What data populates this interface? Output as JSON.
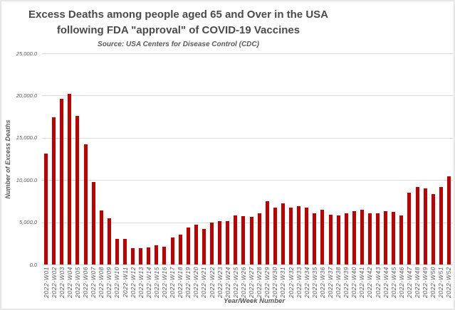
{
  "chart": {
    "title_line1": "Excess Deaths among people aged 65 and Over in the USA",
    "title_line2": "following FDA \"approval\" of COVID-19 Vaccines",
    "subtitle": "Source: USA Centers for Disease Control (CDC)",
    "colors": {
      "bar": "#c00000",
      "gridline": "#d9d9d9",
      "title_text": "#4a4a4a",
      "axis_text": "#595959",
      "background": "#ffffff",
      "frame_border": "#e7e7e7"
    }
  },
  "chart_data": {
    "type": "bar",
    "title": "Excess Deaths among people aged 65 and Over in the USA following FDA \"approval\" of COVID-19 Vaccines",
    "subtitle": "Source: USA Centers for Disease Control (CDC)",
    "xlabel": "Year/Week Number",
    "ylabel": "Number of Excess Deaths",
    "ylim": [
      0,
      25000
    ],
    "ytick_step": 5000,
    "ytick_labels": [
      "0.0",
      "5,000.0",
      "10,000.0",
      "15,000.0",
      "20,000.0",
      "25,000.0"
    ],
    "grid": true,
    "legend": false,
    "bar_color": "#c00000",
    "categories": [
      "2022-W01",
      "2022-W02",
      "2022-W03",
      "2022-W04",
      "2022-W05",
      "2022-W06",
      "2022-W07",
      "2022-W08",
      "2022-W09",
      "2022-W10",
      "2022-W11",
      "2022-W12",
      "2022-W13",
      "2022-W14",
      "2022-W15",
      "2022-W16",
      "2022-W17",
      "2022-W18",
      "2022-W19",
      "2022-W20",
      "2022-W21",
      "2022-W22",
      "2022-W23",
      "2022-W24",
      "2022-W25",
      "2022-W26",
      "2022-W27",
      "2022-W28",
      "2022-W29",
      "2022-W30",
      "2022-W31",
      "2022-W32",
      "2022-W33",
      "2022-W34",
      "2022-W35",
      "2022-W36",
      "2022-W37",
      "2022-W38",
      "2022-W39",
      "2022-W40",
      "2022-W41",
      "2022-W42",
      "2022-W43",
      "2022-W44",
      "2022-W45",
      "2022-W46",
      "2022-W47",
      "2022-W48",
      "2022-W49",
      "2022-W50",
      "2022-W51",
      "2022-W52"
    ],
    "values": [
      13100,
      17400,
      19600,
      20200,
      17600,
      14200,
      9800,
      6400,
      5500,
      3000,
      3000,
      1900,
      1900,
      2000,
      2300,
      2100,
      3200,
      3500,
      4400,
      4700,
      4200,
      5000,
      5100,
      5100,
      5800,
      5700,
      5600,
      6100,
      7500,
      6700,
      7200,
      6700,
      6900,
      6700,
      6100,
      6500,
      5900,
      5800,
      6100,
      6300,
      6500,
      6100,
      6100,
      6300,
      6200,
      5800,
      8500,
      9200,
      9000,
      8300,
      9200,
      10400
    ]
  }
}
